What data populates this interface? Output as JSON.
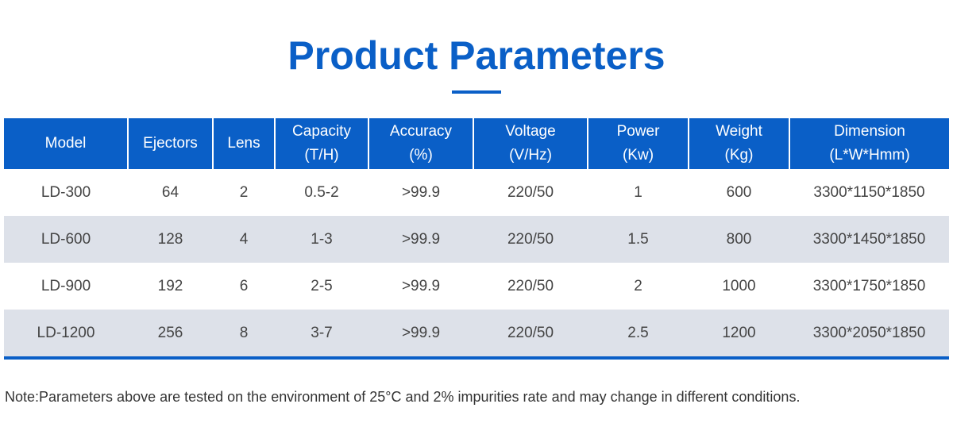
{
  "title": "Product Parameters",
  "table": {
    "headers": [
      {
        "line1": "Model",
        "line2": ""
      },
      {
        "line1": "Ejectors",
        "line2": ""
      },
      {
        "line1": "Lens",
        "line2": ""
      },
      {
        "line1": "Capacity",
        "line2": "(T/H)"
      },
      {
        "line1": "Accuracy",
        "line2": "(%)"
      },
      {
        "line1": "Voltage",
        "line2": "(V/Hz)"
      },
      {
        "line1": "Power",
        "line2": "(Kw)"
      },
      {
        "line1": "Weight",
        "line2": "(Kg)"
      },
      {
        "line1": "Dimension",
        "line2": "(L*W*Hmm)"
      }
    ],
    "rows": [
      [
        "LD-300",
        "64",
        "2",
        "0.5-2",
        ">99.9",
        "220/50",
        "1",
        "600",
        "3300*1150*1850"
      ],
      [
        "LD-600",
        "128",
        "4",
        "1-3",
        ">99.9",
        "220/50",
        "1.5",
        "800",
        "3300*1450*1850"
      ],
      [
        "LD-900",
        "192",
        "6",
        "2-5",
        ">99.9",
        "220/50",
        "2",
        "1000",
        "3300*1750*1850"
      ],
      [
        "LD-1200",
        "256",
        "8",
        "3-7",
        ">99.9",
        "220/50",
        "2.5",
        "1200",
        "3300*2050*1850"
      ]
    ]
  },
  "note": "Note:Parameters above are tested on the environment of 25°C and 2% impurities rate and may change in different conditions.",
  "colors": {
    "accent": "#0a5fc7",
    "row_alt": "#dde1e9"
  }
}
